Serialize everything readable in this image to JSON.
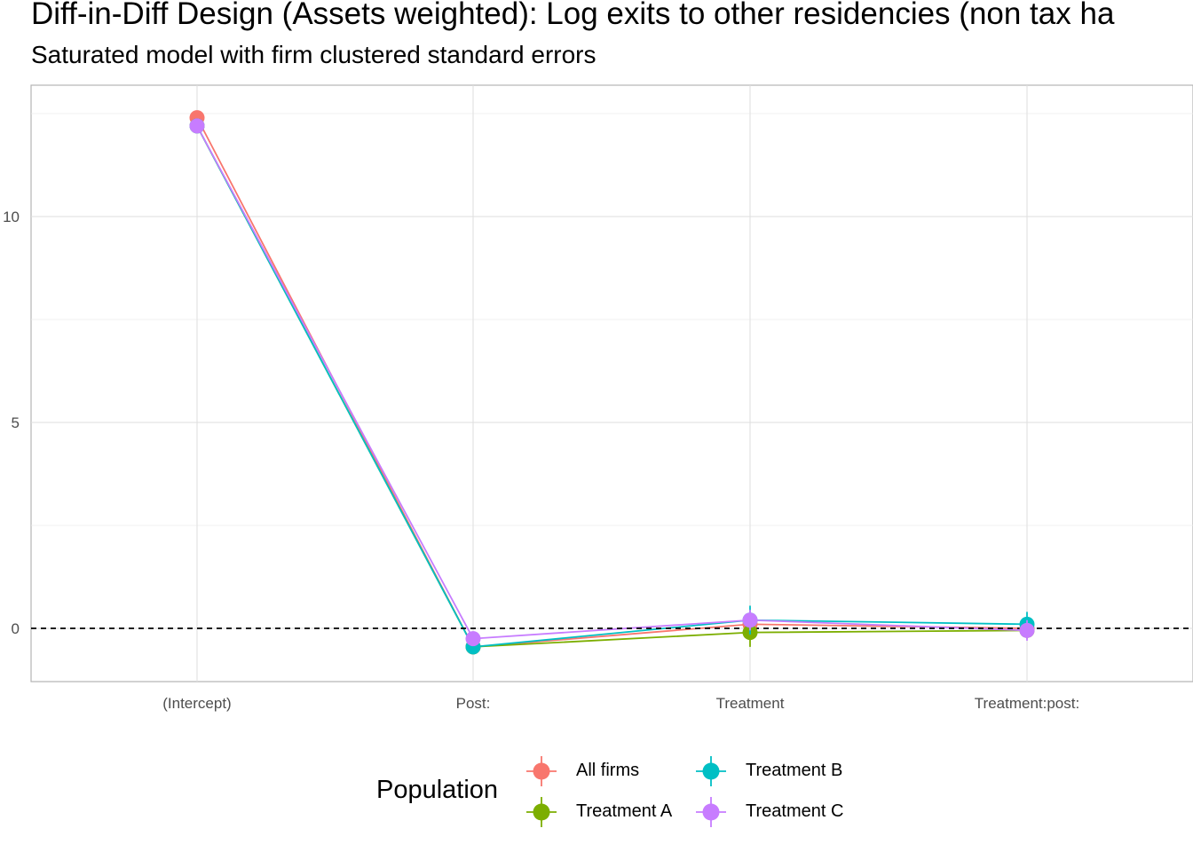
{
  "chart_data": {
    "type": "line",
    "title": "Diff-in-Diff Design (Assets weighted): Log exits to other residencies (non tax ha",
    "subtitle": "Saturated model with firm clustered standard errors",
    "categories": [
      "(Intercept)",
      "Post:",
      "Treatment",
      "Treatment:post:"
    ],
    "y_ticks": [
      0,
      5,
      10
    ],
    "y_tick_labels": [
      "0",
      "5",
      "10"
    ],
    "ylim": [
      -1.3,
      12.7
    ],
    "reference_line": 0,
    "grid": true,
    "legend_title": "Population",
    "legend_position": "bottom",
    "series": [
      {
        "name": "All firms",
        "color": "#F8766D",
        "values": [
          12.4,
          -0.45,
          0.1,
          0.0
        ],
        "err": [
          0.08,
          0.12,
          0.2,
          0.12
        ]
      },
      {
        "name": "Treatment A",
        "color": "#7CAE00",
        "values": [
          12.2,
          -0.45,
          -0.1,
          -0.05
        ],
        "err": [
          0.08,
          0.12,
          0.35,
          0.2
        ]
      },
      {
        "name": "Treatment B",
        "color": "#00BFC4",
        "values": [
          12.2,
          -0.45,
          0.2,
          0.1
        ],
        "err": [
          0.08,
          0.12,
          0.35,
          0.3
        ]
      },
      {
        "name": "Treatment C",
        "color": "#C77CFF",
        "values": [
          12.2,
          -0.25,
          0.2,
          -0.05
        ],
        "err": [
          0.08,
          0.12,
          0.25,
          0.25
        ]
      }
    ]
  }
}
